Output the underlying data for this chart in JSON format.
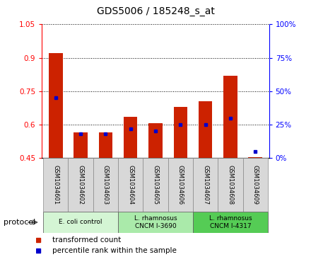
{
  "title": "GDS5006 / 185248_s_at",
  "samples": [
    "GSM1034601",
    "GSM1034602",
    "GSM1034603",
    "GSM1034604",
    "GSM1034605",
    "GSM1034606",
    "GSM1034607",
    "GSM1034608",
    "GSM1034609"
  ],
  "transformed_count": [
    0.92,
    0.565,
    0.565,
    0.635,
    0.605,
    0.68,
    0.705,
    0.82,
    0.455
  ],
  "percentile_rank": [
    45,
    18,
    18,
    22,
    20,
    25,
    25,
    30,
    5
  ],
  "bar_bottom": 0.45,
  "ylim_left": [
    0.45,
    1.05
  ],
  "ylim_right": [
    0,
    100
  ],
  "yticks_left": [
    0.45,
    0.6,
    0.75,
    0.9,
    1.05
  ],
  "yticks_right": [
    0,
    25,
    50,
    75,
    100
  ],
  "bar_color": "#cc2200",
  "dot_color": "#0000cc",
  "protocols": [
    {
      "label": "E. coli control",
      "start": 0,
      "end": 3,
      "color": "#d4f5d4"
    },
    {
      "label": "L. rhamnosus\nCNCM I-3690",
      "start": 3,
      "end": 6,
      "color": "#aaeaaa"
    },
    {
      "label": "L. rhamnosus\nCNCM I-4317",
      "start": 6,
      "end": 9,
      "color": "#55cc55"
    }
  ],
  "legend_items": [
    {
      "label": "transformed count",
      "color": "#cc2200"
    },
    {
      "label": "percentile rank within the sample",
      "color": "#0000cc"
    }
  ],
  "sample_box_color": "#d8d8d8"
}
